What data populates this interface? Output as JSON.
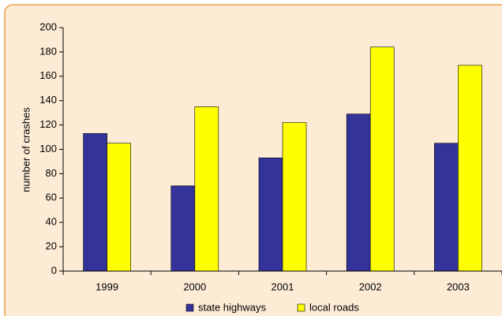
{
  "chart_data": {
    "type": "bar",
    "y_label": "number of crashes",
    "categories": [
      "1999",
      "2000",
      "2001",
      "2002",
      "2003"
    ],
    "series": [
      {
        "name": "state highways",
        "color": "#333399",
        "values": [
          113,
          70,
          93,
          129,
          105
        ]
      },
      {
        "name": "local roads",
        "color": "#ffff00",
        "values": [
          105,
          135,
          122,
          184,
          169
        ]
      }
    ],
    "ylim": [
      0,
      200
    ],
    "yticks": [
      0,
      20,
      40,
      60,
      80,
      100,
      120,
      140,
      160,
      180,
      200
    ],
    "grid": false,
    "legend": "bottom"
  }
}
